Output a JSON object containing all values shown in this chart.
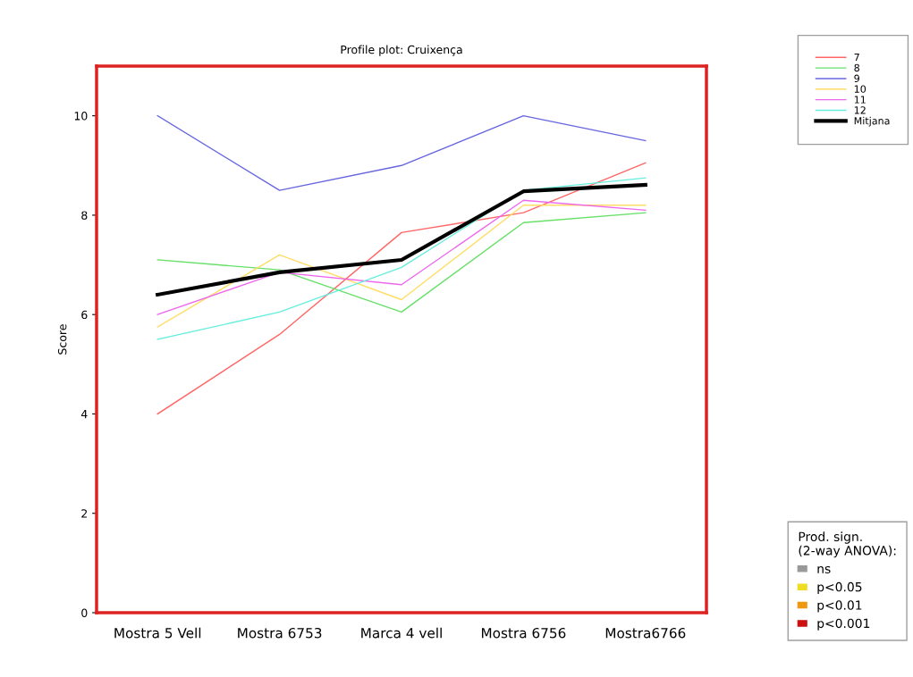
{
  "chart_data": {
    "type": "line",
    "title": "Profile plot: Cruixença",
    "ylabel": "Score",
    "categories": [
      "Mostra 5 Vell",
      "Mostra 6753",
      "Marca 4 vell",
      "Mostra 6756",
      "Mostra6766"
    ],
    "series": [
      {
        "name": "7",
        "color": "#ff6666",
        "values": [
          4.0,
          5.6,
          7.65,
          8.05,
          9.05
        ]
      },
      {
        "name": "8",
        "color": "#66e066",
        "values": [
          7.1,
          6.9,
          6.05,
          7.85,
          8.05
        ]
      },
      {
        "name": "9",
        "color": "#6666e0",
        "values": [
          10.0,
          8.5,
          9.0,
          10.0,
          9.5
        ]
      },
      {
        "name": "10",
        "color": "#ffdd66",
        "values": [
          5.75,
          7.2,
          6.3,
          8.2,
          8.2
        ]
      },
      {
        "name": "11",
        "color": "#ee66ee",
        "values": [
          6.0,
          6.85,
          6.6,
          8.3,
          8.1
        ]
      },
      {
        "name": "12",
        "color": "#66eedd",
        "values": [
          5.5,
          6.05,
          6.95,
          8.5,
          8.75
        ]
      },
      {
        "name": "Mitjana",
        "color": "#000000",
        "values": [
          6.4,
          6.85,
          7.1,
          8.48,
          8.61
        ]
      }
    ],
    "ylim": [
      0,
      11
    ],
    "yticks": [
      0,
      2,
      4,
      6,
      8,
      10
    ],
    "legend": "top right",
    "grid": false,
    "annotations": [
      "Prod. sign.\n(2-way ANOVA):",
      "ns",
      "p<0.05",
      "p<0.01",
      "p<0.001"
    ]
  }
}
